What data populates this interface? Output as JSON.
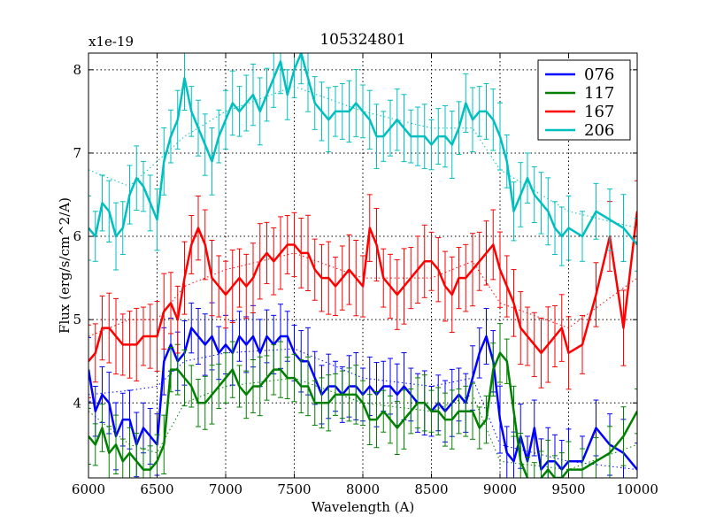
{
  "chart_data": {
    "type": "line",
    "title": "105324801",
    "xlabel": "Wavelength (A)",
    "ylabel": "Flux (erg/s/cm^2/A)",
    "offset_label": "x1e-19",
    "xlim": [
      6000,
      10000
    ],
    "ylim": [
      3.1,
      8.2
    ],
    "xticks": [
      6000,
      6500,
      7000,
      7500,
      8000,
      8500,
      9000,
      9500,
      10000
    ],
    "yticks": [
      4,
      5,
      6,
      7,
      8
    ],
    "grid": true,
    "legend_position": "top-right",
    "series": [
      {
        "name": "076",
        "color": "#0000ff",
        "x": [
          6000,
          6050,
          6100,
          6150,
          6200,
          6250,
          6300,
          6350,
          6400,
          6450,
          6500,
          6550,
          6600,
          6650,
          6700,
          6750,
          6800,
          6850,
          6900,
          6950,
          7000,
          7050,
          7100,
          7150,
          7200,
          7250,
          7300,
          7350,
          7400,
          7450,
          7500,
          7550,
          7600,
          7650,
          7700,
          7750,
          7800,
          7850,
          7900,
          7950,
          8000,
          8050,
          8100,
          8150,
          8200,
          8250,
          8300,
          8350,
          8400,
          8450,
          8500,
          8550,
          8600,
          8650,
          8700,
          8750,
          8800,
          8850,
          8900,
          8950,
          9000,
          9050,
          9100,
          9150,
          9200,
          9250,
          9300,
          9350,
          9400,
          9450,
          9500,
          9600,
          9700,
          9800,
          9900,
          10000
        ],
        "y": [
          4.4,
          3.9,
          4.1,
          4.0,
          3.6,
          3.8,
          3.8,
          3.5,
          3.7,
          3.6,
          3.5,
          4.5,
          4.7,
          4.5,
          4.6,
          4.9,
          4.8,
          4.7,
          4.8,
          4.6,
          4.7,
          4.6,
          4.8,
          4.7,
          4.8,
          4.6,
          4.8,
          4.7,
          4.8,
          4.8,
          4.6,
          4.5,
          4.5,
          4.3,
          4.1,
          4.2,
          4.2,
          4.1,
          4.2,
          4.2,
          4.1,
          4.2,
          4.1,
          4.2,
          4.2,
          4.1,
          4.2,
          4.1,
          4.0,
          4.0,
          3.9,
          4.0,
          3.9,
          4.0,
          4.1,
          4.0,
          4.3,
          4.6,
          4.8,
          4.5,
          3.8,
          3.4,
          3.3,
          3.6,
          3.3,
          3.7,
          3.2,
          3.3,
          3.3,
          3.2,
          3.3,
          3.3,
          3.7,
          3.5,
          3.4,
          3.2
        ],
        "error": 0.3
      },
      {
        "name": "117",
        "color": "#008000",
        "x": [
          6000,
          6050,
          6100,
          6150,
          6200,
          6250,
          6300,
          6350,
          6400,
          6450,
          6500,
          6550,
          6600,
          6650,
          6700,
          6750,
          6800,
          6850,
          6900,
          6950,
          7000,
          7050,
          7100,
          7150,
          7200,
          7250,
          7300,
          7350,
          7400,
          7450,
          7500,
          7550,
          7600,
          7650,
          7700,
          7750,
          7800,
          7850,
          7900,
          7950,
          8000,
          8050,
          8100,
          8150,
          8200,
          8250,
          8300,
          8350,
          8400,
          8450,
          8500,
          8550,
          8600,
          8650,
          8700,
          8750,
          8800,
          8850,
          8900,
          8950,
          9000,
          9050,
          9100,
          9150,
          9200,
          9250,
          9300,
          9350,
          9400,
          9450,
          9500,
          9600,
          9700,
          9800,
          9900,
          10000
        ],
        "y": [
          3.6,
          3.5,
          3.7,
          3.4,
          3.5,
          3.3,
          3.4,
          3.3,
          3.2,
          3.2,
          3.3,
          3.5,
          4.4,
          4.4,
          4.3,
          4.2,
          4.0,
          4.0,
          4.1,
          4.2,
          4.3,
          4.4,
          4.2,
          4.1,
          4.2,
          4.2,
          4.3,
          4.4,
          4.4,
          4.3,
          4.3,
          4.2,
          4.2,
          4.0,
          4.0,
          4.0,
          4.1,
          4.1,
          4.1,
          4.1,
          4.0,
          3.8,
          3.8,
          3.9,
          3.8,
          3.7,
          3.8,
          3.9,
          4.0,
          4.0,
          3.9,
          3.9,
          3.8,
          3.8,
          3.9,
          3.9,
          3.9,
          3.7,
          3.8,
          4.4,
          4.6,
          4.5,
          3.9,
          3.3,
          3.1,
          3.0,
          3.1,
          3.2,
          3.1,
          3.1,
          3.2,
          3.2,
          3.3,
          3.4,
          3.6,
          3.9
        ],
        "error": 0.25
      },
      {
        "name": "167",
        "color": "#ff0000",
        "x": [
          6000,
          6050,
          6100,
          6150,
          6200,
          6250,
          6300,
          6350,
          6400,
          6450,
          6500,
          6550,
          6600,
          6650,
          6700,
          6750,
          6800,
          6850,
          6900,
          6950,
          7000,
          7050,
          7100,
          7150,
          7200,
          7250,
          7300,
          7350,
          7400,
          7450,
          7500,
          7550,
          7600,
          7650,
          7700,
          7750,
          7800,
          7850,
          7900,
          7950,
          8000,
          8050,
          8100,
          8150,
          8200,
          8250,
          8300,
          8350,
          8400,
          8450,
          8500,
          8550,
          8600,
          8650,
          8700,
          8750,
          8800,
          8850,
          8900,
          8950,
          9000,
          9050,
          9100,
          9150,
          9200,
          9250,
          9300,
          9350,
          9400,
          9450,
          9500,
          9600,
          9700,
          9800,
          9900,
          10000
        ],
        "y": [
          4.5,
          4.6,
          4.9,
          4.9,
          4.8,
          4.7,
          4.7,
          4.7,
          4.8,
          4.8,
          4.8,
          5.1,
          5.2,
          5.0,
          5.5,
          5.9,
          6.1,
          5.9,
          5.5,
          5.4,
          5.3,
          5.4,
          5.5,
          5.4,
          5.5,
          5.7,
          5.8,
          5.7,
          5.8,
          5.9,
          5.9,
          5.8,
          5.8,
          5.6,
          5.5,
          5.5,
          5.4,
          5.5,
          5.6,
          5.5,
          5.4,
          6.1,
          5.9,
          5.5,
          5.4,
          5.3,
          5.4,
          5.5,
          5.6,
          5.7,
          5.7,
          5.6,
          5.4,
          5.3,
          5.5,
          5.5,
          5.6,
          5.7,
          5.8,
          5.9,
          5.6,
          5.4,
          5.2,
          4.9,
          4.8,
          4.7,
          4.6,
          4.7,
          4.8,
          4.9,
          4.6,
          4.7,
          5.3,
          6.0,
          4.9,
          6.3
        ],
        "error": 0.35
      },
      {
        "name": "206",
        "color": "#00bfbf",
        "x": [
          6000,
          6050,
          6100,
          6150,
          6200,
          6250,
          6300,
          6350,
          6400,
          6450,
          6500,
          6550,
          6600,
          6650,
          6700,
          6750,
          6800,
          6850,
          6900,
          6950,
          7000,
          7050,
          7100,
          7150,
          7200,
          7250,
          7300,
          7350,
          7400,
          7450,
          7500,
          7550,
          7600,
          7650,
          7700,
          7750,
          7800,
          7850,
          7900,
          7950,
          8000,
          8050,
          8100,
          8150,
          8200,
          8250,
          8300,
          8350,
          8400,
          8450,
          8500,
          8550,
          8600,
          8650,
          8700,
          8750,
          8800,
          8850,
          8900,
          8950,
          9000,
          9050,
          9100,
          9150,
          9200,
          9250,
          9300,
          9350,
          9400,
          9450,
          9500,
          9600,
          9700,
          9800,
          9900,
          10000
        ],
        "y": [
          6.1,
          6.0,
          6.4,
          6.3,
          6.0,
          6.1,
          6.5,
          6.7,
          6.6,
          6.4,
          6.2,
          6.9,
          7.2,
          7.4,
          7.9,
          7.5,
          7.3,
          7.1,
          6.9,
          7.2,
          7.4,
          7.6,
          7.5,
          7.6,
          7.7,
          7.5,
          7.7,
          7.9,
          8.1,
          7.7,
          8.0,
          8.2,
          7.9,
          7.6,
          7.5,
          7.4,
          7.5,
          7.5,
          7.5,
          7.6,
          7.5,
          7.4,
          7.2,
          7.2,
          7.3,
          7.4,
          7.3,
          7.2,
          7.2,
          7.2,
          7.1,
          7.2,
          7.2,
          7.1,
          7.3,
          7.6,
          7.4,
          7.5,
          7.5,
          7.4,
          7.2,
          6.9,
          6.3,
          6.5,
          6.7,
          6.5,
          6.4,
          6.3,
          6.1,
          6.0,
          6.1,
          6.0,
          6.3,
          6.2,
          6.1,
          5.9
        ],
        "error": 0.3
      }
    ],
    "model_curves": [
      {
        "name": "076 model",
        "color": "#0000ff",
        "points": [
          [
            6000,
            4.1
          ],
          [
            6300,
            4.15
          ],
          [
            6500,
            4.2
          ],
          [
            6700,
            4.5
          ],
          [
            7000,
            4.6
          ],
          [
            7500,
            4.65
          ],
          [
            8000,
            4.3
          ],
          [
            8500,
            4.2
          ],
          [
            8800,
            4.3
          ],
          [
            9000,
            3.5
          ],
          [
            9500,
            3.3
          ],
          [
            10000,
            3.2
          ]
        ]
      },
      {
        "name": "117 model",
        "color": "#008000",
        "points": [
          [
            6000,
            3.9
          ],
          [
            6300,
            3.5
          ],
          [
            6500,
            3.4
          ],
          [
            6700,
            4.0
          ],
          [
            7000,
            4.2
          ],
          [
            7500,
            4.3
          ],
          [
            8000,
            4.0
          ],
          [
            8500,
            3.9
          ],
          [
            8800,
            4.1
          ],
          [
            9000,
            3.3
          ],
          [
            9500,
            3.2
          ],
          [
            10000,
            3.5
          ]
        ]
      },
      {
        "name": "167 model",
        "color": "#ff0000",
        "points": [
          [
            6000,
            4.8
          ],
          [
            6300,
            5.0
          ],
          [
            6500,
            5.0
          ],
          [
            6700,
            5.4
          ],
          [
            7000,
            5.6
          ],
          [
            7500,
            5.8
          ],
          [
            8000,
            5.5
          ],
          [
            8500,
            5.5
          ],
          [
            8800,
            5.7
          ],
          [
            9000,
            5.2
          ],
          [
            9500,
            4.9
          ],
          [
            10000,
            5.5
          ]
        ]
      },
      {
        "name": "206 model",
        "color": "#00bfbf",
        "points": [
          [
            6000,
            6.8
          ],
          [
            6300,
            6.6
          ],
          [
            6500,
            6.9
          ],
          [
            6700,
            7.2
          ],
          [
            7000,
            7.5
          ],
          [
            7500,
            7.8
          ],
          [
            8000,
            7.5
          ],
          [
            8500,
            7.3
          ],
          [
            8800,
            7.3
          ],
          [
            9000,
            6.8
          ],
          [
            9500,
            6.3
          ],
          [
            10000,
            6.1
          ]
        ]
      }
    ]
  }
}
